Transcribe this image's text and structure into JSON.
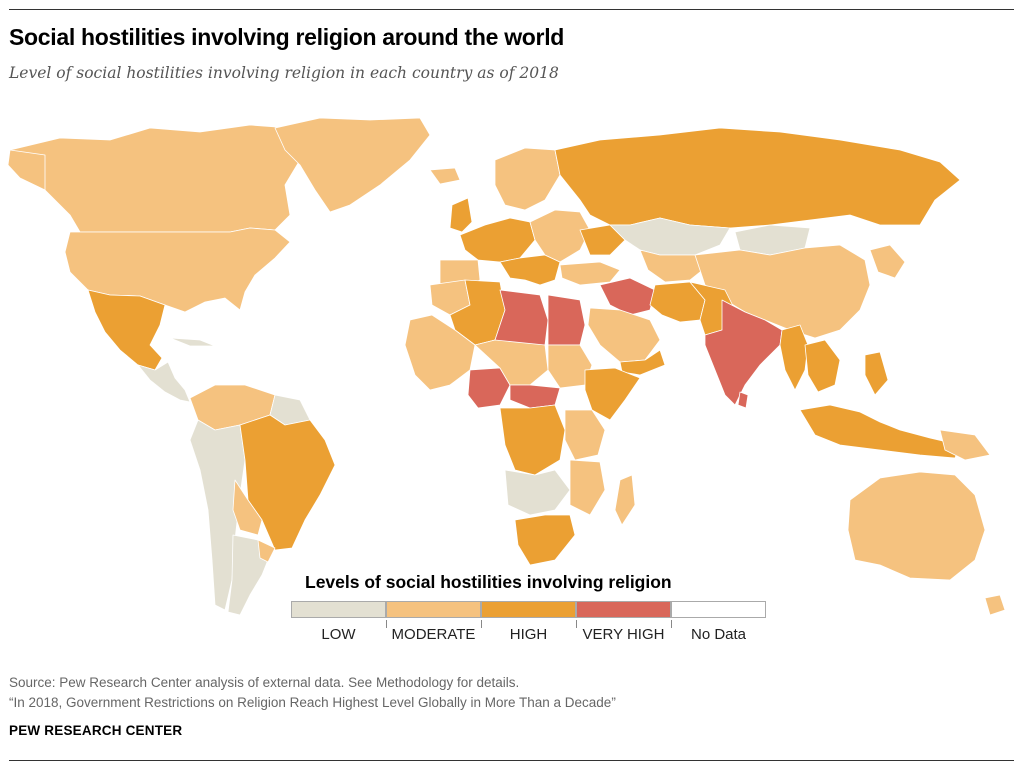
{
  "header": {
    "title": "Social hostilities involving religion around the world",
    "subtitle": "Level of social hostilities involving religion in each country as of 2018"
  },
  "colors": {
    "low": "#e3e0d2",
    "moderate": "#f5c27f",
    "high": "#eba033",
    "very_high": "#d9675a",
    "no_data": "#ffffff",
    "border": "#ffffff"
  },
  "legend": {
    "title": "Levels of social hostilities involving religion",
    "items": [
      {
        "label": "LOW",
        "color": "#e3e0d2"
      },
      {
        "label": "MODERATE",
        "color": "#f5c27f"
      },
      {
        "label": "HIGH",
        "color": "#eba033"
      },
      {
        "label": "VERY HIGH",
        "color": "#d9675a"
      },
      {
        "label": "No Data",
        "color": "#ffffff"
      }
    ]
  },
  "footer": {
    "source": "Source: Pew Research Center analysis of external data. See Methodology for details.",
    "report": "“In 2018, Government Restrictions on Religion Reach Highest Level Globally in More Than a Decade”",
    "brand": "PEW RESEARCH CENTER"
  }
}
